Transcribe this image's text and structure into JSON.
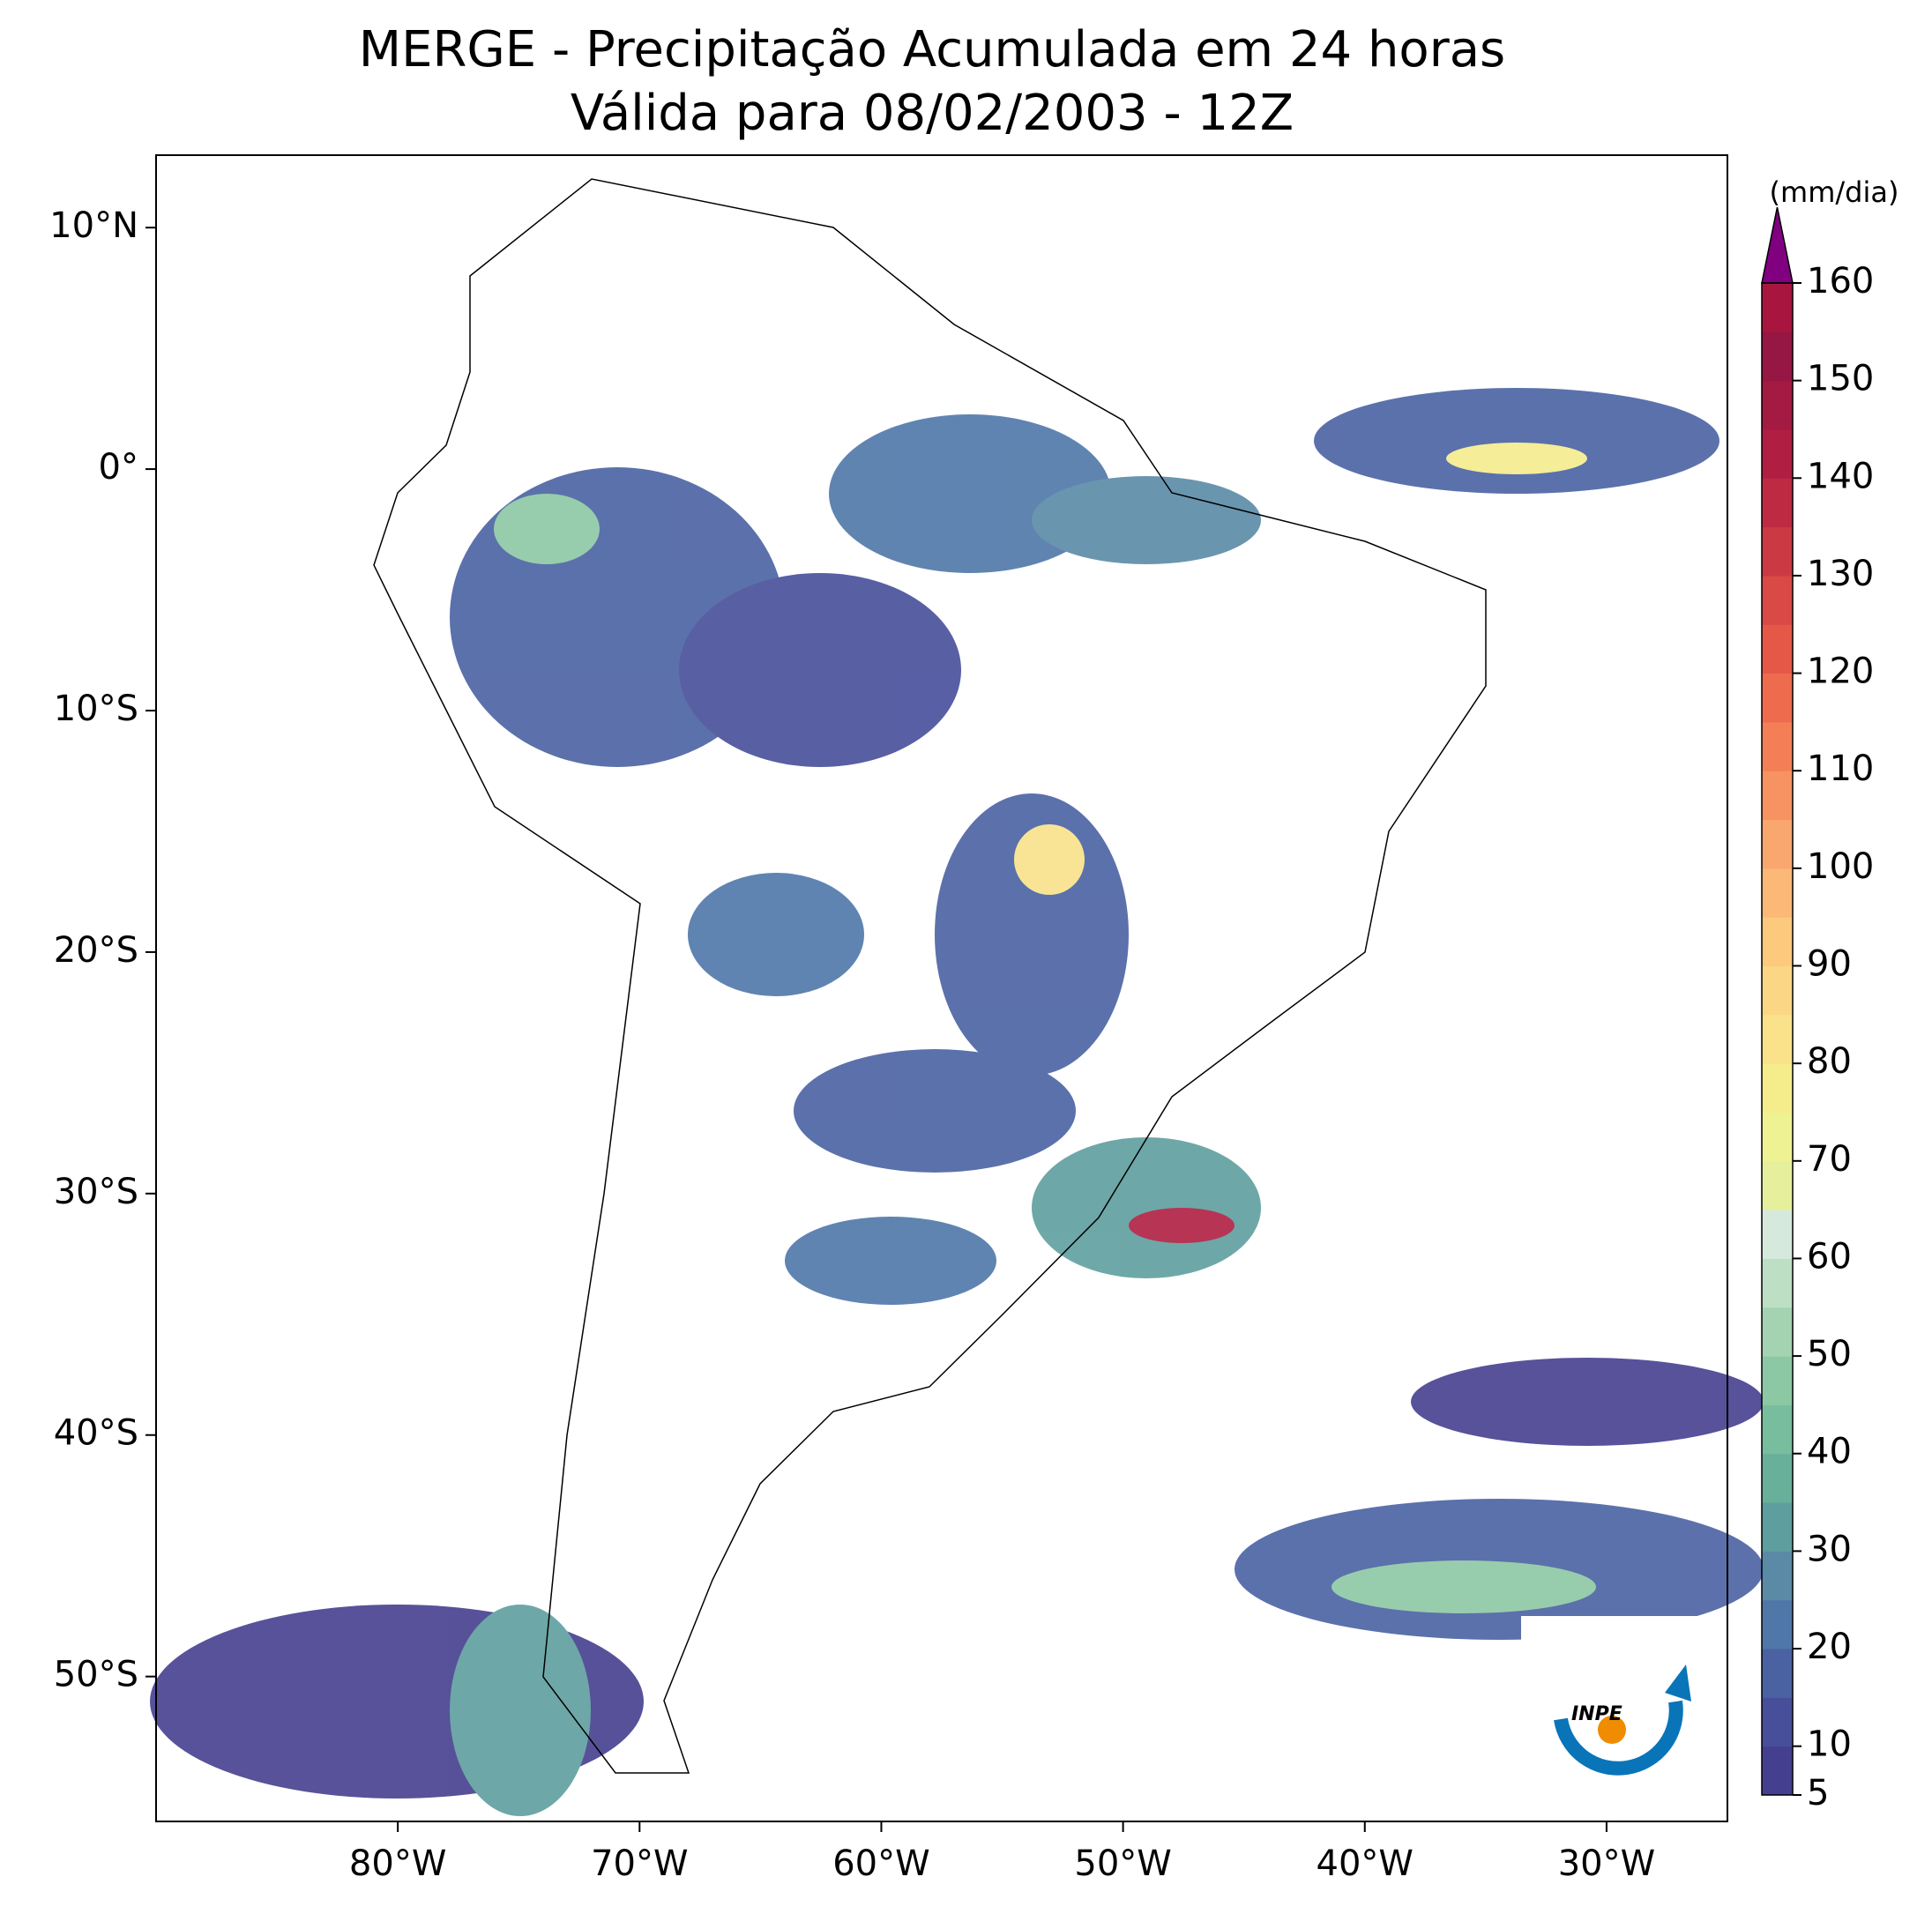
{
  "map": {
    "title": [
      "MERGE - Precipitação Acumulada em 24 horas",
      "Válida para 08/02/2003 - 12Z"
    ],
    "lonlim": [
      -90,
      -25
    ],
    "latlim": [
      -56,
      13
    ],
    "xticks": [
      {
        "value": -80,
        "label": "80°W"
      },
      {
        "value": -70,
        "label": "70°W"
      },
      {
        "value": -60,
        "label": "60°W"
      },
      {
        "value": -50,
        "label": "50°W"
      },
      {
        "value": -40,
        "label": "40°W"
      },
      {
        "value": -30,
        "label": "30°W"
      }
    ],
    "yticks": [
      {
        "value": 10,
        "label": "10°N"
      },
      {
        "value": 0,
        "label": "0°"
      },
      {
        "value": -10,
        "label": "10°S"
      },
      {
        "value": -20,
        "label": "20°S"
      },
      {
        "value": -30,
        "label": "30°S"
      },
      {
        "value": -40,
        "label": "40°S"
      },
      {
        "value": -50,
        "label": "50°S"
      }
    ],
    "colorbar": {
      "label": "(mm/dia)",
      "lim": [
        5,
        160
      ],
      "levels": [
        5,
        10,
        15,
        20,
        25,
        30,
        35,
        40,
        45,
        50,
        55,
        60,
        65,
        70,
        75,
        80,
        85,
        90,
        95,
        100,
        105,
        110,
        115,
        120,
        125,
        130,
        135,
        140,
        145,
        150,
        155,
        160
      ],
      "colors": [
        "#453f8f",
        "#474e9a",
        "#4a62a2",
        "#4f77a8",
        "#5a8aa6",
        "#5f9e9e",
        "#68b09a",
        "#78bd9d",
        "#8cc8a4",
        "#a3d3b0",
        "#bde0c4",
        "#d5eadc",
        "#e6f09c",
        "#eef293",
        "#f5ec8c",
        "#f9e28a",
        "#fbd685",
        "#fcc97d",
        "#fbb877",
        "#faa66f",
        "#f79363",
        "#f47f57",
        "#ee6b4e",
        "#e55848",
        "#d94945",
        "#cb3943",
        "#bd2a41",
        "#b01f42",
        "#a31a43",
        "#961644",
        "#a8163f"
      ],
      "extend_color": "#800080",
      "ticks": [
        5,
        10,
        20,
        30,
        40,
        50,
        60,
        70,
        80,
        90,
        100,
        110,
        120,
        130,
        140,
        150,
        160
      ]
    },
    "logo_text": "INPE"
  }
}
